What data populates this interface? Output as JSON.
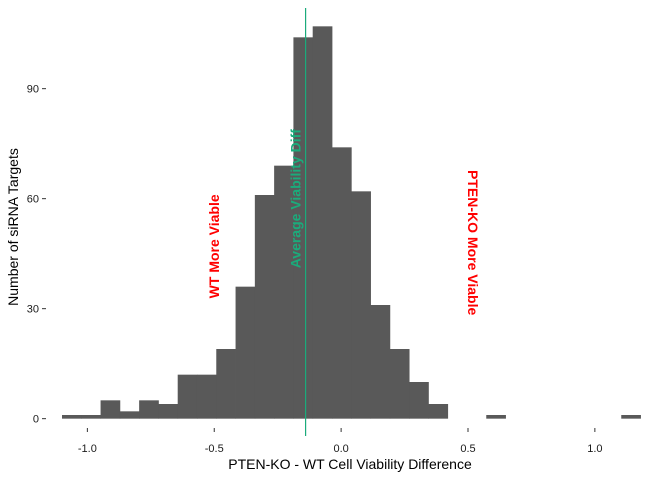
{
  "chart_data": {
    "type": "bar",
    "subtype": "histogram",
    "title": "",
    "xlabel": "PTEN-KO - WT Cell Viability Difference",
    "ylabel": "Number of siRNA Targets",
    "xlim": [
      -1.1,
      1.17
    ],
    "ylim": [
      -2,
      112
    ],
    "x_ticks": [
      -1.0,
      -0.5,
      0.0,
      0.5,
      1.0
    ],
    "x_tick_labels": [
      "-1.0",
      "-0.5",
      "0.0",
      "0.5",
      "1.0"
    ],
    "y_ticks": [
      0,
      30,
      60,
      90
    ],
    "y_tick_labels": [
      "0",
      "30",
      "60",
      "90"
    ],
    "grid": false,
    "legend": "none",
    "bin_width": 0.076,
    "bins": [
      {
        "x0": -1.1,
        "x1": -1.024,
        "count": 1
      },
      {
        "x0": -1.024,
        "x1": -0.948,
        "count": 1
      },
      {
        "x0": -0.948,
        "x1": -0.872,
        "count": 5
      },
      {
        "x0": -0.872,
        "x1": -0.796,
        "count": 2
      },
      {
        "x0": -0.796,
        "x1": -0.72,
        "count": 5
      },
      {
        "x0": -0.72,
        "x1": -0.644,
        "count": 4
      },
      {
        "x0": -0.644,
        "x1": -0.568,
        "count": 12
      },
      {
        "x0": -0.568,
        "x1": -0.492,
        "count": 12
      },
      {
        "x0": -0.492,
        "x1": -0.416,
        "count": 19
      },
      {
        "x0": -0.416,
        "x1": -0.34,
        "count": 36
      },
      {
        "x0": -0.34,
        "x1": -0.264,
        "count": 61
      },
      {
        "x0": -0.264,
        "x1": -0.188,
        "count": 69
      },
      {
        "x0": -0.188,
        "x1": -0.112,
        "count": 104
      },
      {
        "x0": -0.112,
        "x1": -0.036,
        "count": 107
      },
      {
        "x0": -0.036,
        "x1": 0.04,
        "count": 74
      },
      {
        "x0": 0.04,
        "x1": 0.116,
        "count": 62
      },
      {
        "x0": 0.116,
        "x1": 0.192,
        "count": 31
      },
      {
        "x0": 0.192,
        "x1": 0.268,
        "count": 19
      },
      {
        "x0": 0.268,
        "x1": 0.344,
        "count": 10
      },
      {
        "x0": 0.344,
        "x1": 0.42,
        "count": 4
      },
      {
        "x0": 0.42,
        "x1": 0.496,
        "count": 0
      },
      {
        "x0": 0.496,
        "x1": 0.572,
        "count": 0
      },
      {
        "x0": 0.572,
        "x1": 0.648,
        "count": 1
      },
      {
        "x0": 0.648,
        "x1": 0.724,
        "count": 0
      },
      {
        "x0": 0.724,
        "x1": 0.8,
        "count": 0
      },
      {
        "x0": 0.8,
        "x1": 0.876,
        "count": 0
      },
      {
        "x0": 0.876,
        "x1": 0.952,
        "count": 0
      },
      {
        "x0": 0.952,
        "x1": 1.028,
        "count": 0
      },
      {
        "x0": 1.028,
        "x1": 1.104,
        "count": 0
      },
      {
        "x0": 1.104,
        "x1": 1.18,
        "count": 1
      }
    ],
    "bar_color": "#595959",
    "vline": {
      "x": -0.14,
      "label": "Average Viability Diff",
      "color": "#1bab7b"
    },
    "annotations": [
      {
        "text": "WT More Viable",
        "x": -0.5,
        "y": 47,
        "color": "#ff0000"
      },
      {
        "text": "PTEN-KO More Viable",
        "x": 0.48,
        "y": 48,
        "color": "#ff0000"
      }
    ]
  }
}
